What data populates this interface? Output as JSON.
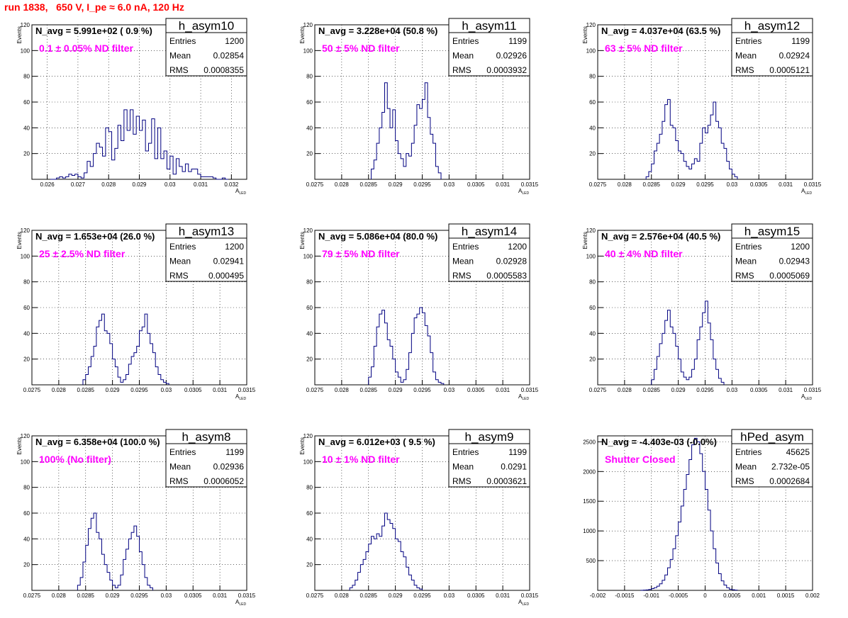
{
  "page_title": "run 1838,   650 V, I_pe ≈ 6.0 nA, 120 Hz",
  "colors": {
    "title": "#ff0000",
    "filter_label": "#ff00ff",
    "histogram": "#000080"
  },
  "chart_data": [
    {
      "type": "bar",
      "hist_name": "h_asym10",
      "title": "",
      "xlabel": "A",
      "xlabel_sub": "LED",
      "ylabel": "Events",
      "xlim": [
        0.0255,
        0.0325
      ],
      "ylim": [
        0,
        120
      ],
      "x_ticks": [
        "0.026",
        "0.027",
        "0.028",
        "0.029",
        "0.03",
        "0.031",
        "0.032"
      ],
      "x_tick_values": [
        0.026,
        0.027,
        0.028,
        0.029,
        0.03,
        0.031,
        0.032
      ],
      "y_ticks": [
        "20",
        "40",
        "60",
        "80",
        "100",
        "120"
      ],
      "y_tick_values": [
        20,
        40,
        60,
        80,
        100,
        120
      ],
      "grid": true,
      "stats": {
        "entries_label": "Entries",
        "entries": "1200",
        "mean_label": "Mean",
        "mean": "0.02854",
        "rms_label": "RMS",
        "rms": "0.0008355"
      },
      "n_avg": "N_avg = 5.991e+02 ( 0.9 %)",
      "filter": "0.1 ± 0.05% ND filter",
      "series": [
        {
          "bin_start": 0.0261,
          "bin_width": 0.0001,
          "values": [
            0,
            0,
            1,
            2,
            1,
            2,
            4,
            3,
            4,
            2,
            1,
            5,
            14,
            10,
            20,
            28,
            25,
            18,
            40,
            37,
            15,
            24,
            42,
            30,
            54,
            38,
            54,
            35,
            49,
            38,
            46,
            22,
            28,
            47,
            16,
            40,
            16,
            22,
            8,
            18,
            4,
            16,
            10,
            6,
            12,
            6,
            8,
            8,
            4,
            2,
            2,
            2,
            2,
            1,
            0,
            0,
            1,
            0
          ]
        }
      ]
    },
    {
      "type": "bar",
      "hist_name": "h_asym11",
      "title": "",
      "xlabel": "A",
      "xlabel_sub": "LED",
      "ylabel": "Events",
      "xlim": [
        0.0275,
        0.0315
      ],
      "ylim": [
        0,
        120
      ],
      "x_ticks": [
        "0.0275",
        "0.028",
        "0.0285",
        "0.029",
        "0.0295",
        "0.03",
        "0.0305",
        "0.031",
        "0.0315"
      ],
      "x_tick_values": [
        0.0275,
        0.028,
        0.0285,
        0.029,
        0.0295,
        0.03,
        0.0305,
        0.031,
        0.0315
      ],
      "y_ticks": [
        "20",
        "40",
        "60",
        "80",
        "100",
        "120"
      ],
      "y_tick_values": [
        20,
        40,
        60,
        80,
        100,
        120
      ],
      "grid": true,
      "stats": {
        "entries_label": "Entries",
        "entries": "1199",
        "mean_label": "Mean",
        "mean": "0.02926",
        "rms_label": "RMS",
        "rms": "0.0003932"
      },
      "n_avg": "N_avg = 3.228e+04 (50.8 %)",
      "filter": "50 ± 5% ND filter",
      "series": [
        {
          "bin_start": 0.02855,
          "bin_width": 5e-05,
          "values": [
            8,
            15,
            28,
            40,
            52,
            75,
            55,
            40,
            54,
            30,
            20,
            16,
            10,
            20,
            18,
            28,
            42,
            58,
            55,
            62,
            75,
            48,
            35,
            28,
            10,
            5
          ]
        }
      ]
    },
    {
      "type": "bar",
      "hist_name": "h_asym12",
      "title": "",
      "xlabel": "A",
      "xlabel_sub": "LED",
      "ylabel": "Events",
      "xlim": [
        0.0275,
        0.0315
      ],
      "ylim": [
        0,
        120
      ],
      "x_ticks": [
        "0.0275",
        "0.028",
        "0.0285",
        "0.029",
        "0.0295",
        "0.03",
        "0.0305",
        "0.031",
        "0.0315"
      ],
      "x_tick_values": [
        0.0275,
        0.028,
        0.0285,
        0.029,
        0.0295,
        0.03,
        0.0305,
        0.031,
        0.0315
      ],
      "y_ticks": [
        "20",
        "40",
        "60",
        "80",
        "100",
        "120"
      ],
      "y_tick_values": [
        20,
        40,
        60,
        80,
        100,
        120
      ],
      "grid": true,
      "stats": {
        "entries_label": "Entries",
        "entries": "1199",
        "mean_label": "Mean",
        "mean": "0.02924",
        "rms_label": "RMS",
        "rms": "0.0005121"
      },
      "n_avg": "N_avg = 4.037e+04 (63.5 %)",
      "filter": "63 ± 5% ND filter",
      "series": [
        {
          "bin_start": 0.0284,
          "bin_width": 5e-05,
          "values": [
            2,
            6,
            12,
            22,
            28,
            35,
            45,
            58,
            62,
            42,
            40,
            30,
            22,
            20,
            14,
            10,
            8,
            12,
            16,
            14,
            28,
            40,
            36,
            42,
            50,
            60,
            45,
            40,
            28,
            24,
            14,
            8,
            4,
            2
          ]
        }
      ]
    },
    {
      "type": "bar",
      "hist_name": "h_asym13",
      "title": "",
      "xlabel": "A",
      "xlabel_sub": "LED",
      "ylabel": "Events",
      "xlim": [
        0.0275,
        0.0315
      ],
      "ylim": [
        0,
        120
      ],
      "x_ticks": [
        "0.0275",
        "0.028",
        "0.0285",
        "0.029",
        "0.0295",
        "0.03",
        "0.0305",
        "0.031",
        "0.0315"
      ],
      "x_tick_values": [
        0.0275,
        0.028,
        0.0285,
        0.029,
        0.0295,
        0.03,
        0.0305,
        0.031,
        0.0315
      ],
      "y_ticks": [
        "20",
        "40",
        "60",
        "80",
        "100",
        "120"
      ],
      "y_tick_values": [
        20,
        40,
        60,
        80,
        100,
        120
      ],
      "grid": true,
      "stats": {
        "entries_label": "Entries",
        "entries": "1200",
        "mean_label": "Mean",
        "mean": "0.02941",
        "rms_label": "RMS",
        "rms": "0.000495"
      },
      "n_avg": "N_avg = 1.653e+04 (26.0 %)",
      "filter": "25 ± 2.5% ND filter",
      "series": [
        {
          "bin_start": 0.02845,
          "bin_width": 5e-05,
          "values": [
            4,
            8,
            14,
            22,
            30,
            45,
            50,
            55,
            42,
            40,
            32,
            20,
            14,
            6,
            2,
            4,
            8,
            16,
            22,
            25,
            30,
            42,
            45,
            55,
            40,
            32,
            25,
            14,
            8,
            4,
            2,
            1
          ]
        }
      ]
    },
    {
      "type": "bar",
      "hist_name": "h_asym14",
      "title": "",
      "xlabel": "A",
      "xlabel_sub": "LED",
      "ylabel": "Events",
      "xlim": [
        0.0275,
        0.0315
      ],
      "ylim": [
        0,
        120
      ],
      "x_ticks": [
        "0.0275",
        "0.028",
        "0.0285",
        "0.029",
        "0.0295",
        "0.03",
        "0.0305",
        "0.031",
        "0.0315"
      ],
      "x_tick_values": [
        0.0275,
        0.028,
        0.0285,
        0.029,
        0.0295,
        0.03,
        0.0305,
        0.031,
        0.0315
      ],
      "y_ticks": [
        "20",
        "40",
        "60",
        "80",
        "100",
        "120"
      ],
      "y_tick_values": [
        20,
        40,
        60,
        80,
        100,
        120
      ],
      "grid": true,
      "stats": {
        "entries_label": "Entries",
        "entries": "1200",
        "mean_label": "Mean",
        "mean": "0.02928",
        "rms_label": "RMS",
        "rms": "0.0005583"
      },
      "n_avg": "N_avg = 5.086e+04 (80.0 %)",
      "filter": "79 ± 5% ND filter",
      "series": [
        {
          "bin_start": 0.0285,
          "bin_width": 5e-05,
          "values": [
            6,
            14,
            30,
            45,
            55,
            58,
            48,
            35,
            30,
            20,
            10,
            6,
            2,
            4,
            12,
            25,
            40,
            52,
            55,
            60,
            56,
            46,
            38,
            25,
            10,
            4,
            2,
            1
          ]
        }
      ]
    },
    {
      "type": "bar",
      "hist_name": "h_asym15",
      "title": "",
      "xlabel": "A",
      "xlabel_sub": "LED",
      "ylabel": "Events",
      "xlim": [
        0.0275,
        0.0315
      ],
      "ylim": [
        0,
        120
      ],
      "x_ticks": [
        "0.0275",
        "0.028",
        "0.0285",
        "0.029",
        "0.0295",
        "0.03",
        "0.0305",
        "0.031",
        "0.0315"
      ],
      "x_tick_values": [
        0.0275,
        0.028,
        0.0285,
        0.029,
        0.0295,
        0.03,
        0.0305,
        0.031,
        0.0315
      ],
      "y_ticks": [
        "20",
        "40",
        "60",
        "80",
        "100",
        "120"
      ],
      "y_tick_values": [
        20,
        40,
        60,
        80,
        100,
        120
      ],
      "grid": true,
      "stats": {
        "entries_label": "Entries",
        "entries": "1200",
        "mean_label": "Mean",
        "mean": "0.02943",
        "rms_label": "RMS",
        "rms": "0.0005069"
      },
      "n_avg": "N_avg = 2.576e+04 (40.5 %)",
      "filter": "40 ± 4% ND filter",
      "series": [
        {
          "bin_start": 0.0285,
          "bin_width": 5e-05,
          "values": [
            4,
            12,
            22,
            32,
            40,
            50,
            58,
            45,
            40,
            30,
            20,
            10,
            6,
            4,
            6,
            12,
            20,
            35,
            45,
            56,
            65,
            48,
            35,
            20,
            12,
            5,
            2
          ]
        }
      ]
    },
    {
      "type": "bar",
      "hist_name": "h_asym8",
      "title": "",
      "xlabel": "A",
      "xlabel_sub": "LED",
      "ylabel": "Events",
      "xlim": [
        0.0275,
        0.0315
      ],
      "ylim": [
        0,
        120
      ],
      "x_ticks": [
        "0.0275",
        "0.028",
        "0.0285",
        "0.029",
        "0.0295",
        "0.03",
        "0.0305",
        "0.031",
        "0.0315"
      ],
      "x_tick_values": [
        0.0275,
        0.028,
        0.0285,
        0.029,
        0.0295,
        0.03,
        0.0305,
        0.031,
        0.0315
      ],
      "y_ticks": [
        "20",
        "40",
        "60",
        "80",
        "100",
        "120"
      ],
      "y_tick_values": [
        20,
        40,
        60,
        80,
        100,
        120
      ],
      "grid": true,
      "stats": {
        "entries_label": "Entries",
        "entries": "1199",
        "mean_label": "Mean",
        "mean": "0.02936",
        "rms_label": "RMS",
        "rms": "0.0006052"
      },
      "n_avg": "N_avg = 6.358e+04 (100.0 %)",
      "filter": "100% (No filter)",
      "series": [
        {
          "bin_start": 0.02835,
          "bin_width": 5e-05,
          "values": [
            4,
            10,
            22,
            35,
            48,
            56,
            60,
            45,
            40,
            28,
            20,
            14,
            8,
            4,
            2,
            4,
            12,
            24,
            32,
            40,
            45,
            50,
            42,
            30,
            20,
            10,
            4,
            2
          ]
        }
      ]
    },
    {
      "type": "bar",
      "hist_name": "h_asym9",
      "title": "",
      "xlabel": "A",
      "xlabel_sub": "LED",
      "ylabel": "Events",
      "xlim": [
        0.0275,
        0.0315
      ],
      "ylim": [
        0,
        120
      ],
      "x_ticks": [
        "0.0275",
        "0.028",
        "0.0285",
        "0.029",
        "0.0295",
        "0.03",
        "0.0305",
        "0.031",
        "0.0315"
      ],
      "x_tick_values": [
        0.0275,
        0.028,
        0.0285,
        0.029,
        0.0295,
        0.03,
        0.0305,
        0.031,
        0.0315
      ],
      "y_ticks": [
        "20",
        "40",
        "60",
        "80",
        "100",
        "120"
      ],
      "y_tick_values": [
        20,
        40,
        60,
        80,
        100,
        120
      ],
      "grid": true,
      "stats": {
        "entries_label": "Entries",
        "entries": "1199",
        "mean_label": "Mean",
        "mean": "0.0291",
        "rms_label": "RMS",
        "rms": "0.0003621"
      },
      "n_avg": "N_avg = 6.012e+03 ( 9.5 %)",
      "filter": "10 ± 1% ND filter",
      "series": [
        {
          "bin_start": 0.02815,
          "bin_width": 5e-05,
          "values": [
            2,
            4,
            8,
            14,
            20,
            24,
            30,
            36,
            42,
            40,
            44,
            42,
            50,
            60,
            55,
            52,
            48,
            40,
            38,
            30,
            26,
            18,
            12,
            8,
            4,
            2,
            1
          ]
        }
      ]
    },
    {
      "type": "bar",
      "hist_name": "hPed_asym",
      "title": "",
      "xlabel": "",
      "xlabel_sub": "",
      "ylabel": "",
      "xlim": [
        -0.002,
        0.002
      ],
      "ylim": [
        0,
        2600
      ],
      "x_ticks": [
        "-0.002",
        "-0.0015",
        "-0.001",
        "-0.0005",
        "0",
        "0.0005",
        "0.001",
        "0.0015",
        "0.002"
      ],
      "x_tick_values": [
        -0.002,
        -0.0015,
        -0.001,
        -0.0005,
        0,
        0.0005,
        0.001,
        0.0015,
        0.002
      ],
      "y_ticks": [
        "500",
        "1000",
        "1500",
        "2000",
        "2500"
      ],
      "y_tick_values": [
        500,
        1000,
        1500,
        2000,
        2500
      ],
      "grid": true,
      "stats": {
        "entries_label": "Entries",
        "entries": "45625",
        "mean_label": "Mean",
        "mean": "2.732e-05",
        "rms_label": "RMS",
        "rms": "0.0002684"
      },
      "n_avg": "N_avg = -4.403e-03 (-0.0%)",
      "filter": "Shutter Closed",
      "series": [
        {
          "bin_start": -0.0012,
          "bin_width": 5e-05,
          "values": [
            2,
            4,
            8,
            15,
            30,
            45,
            70,
            110,
            170,
            260,
            380,
            520,
            700,
            920,
            1150,
            1420,
            1700,
            1950,
            2200,
            2450,
            2560,
            2500,
            2300,
            2000,
            1700,
            1350,
            1000,
            700,
            460,
            280,
            160,
            90,
            45,
            20,
            10,
            5
          ]
        }
      ]
    }
  ]
}
